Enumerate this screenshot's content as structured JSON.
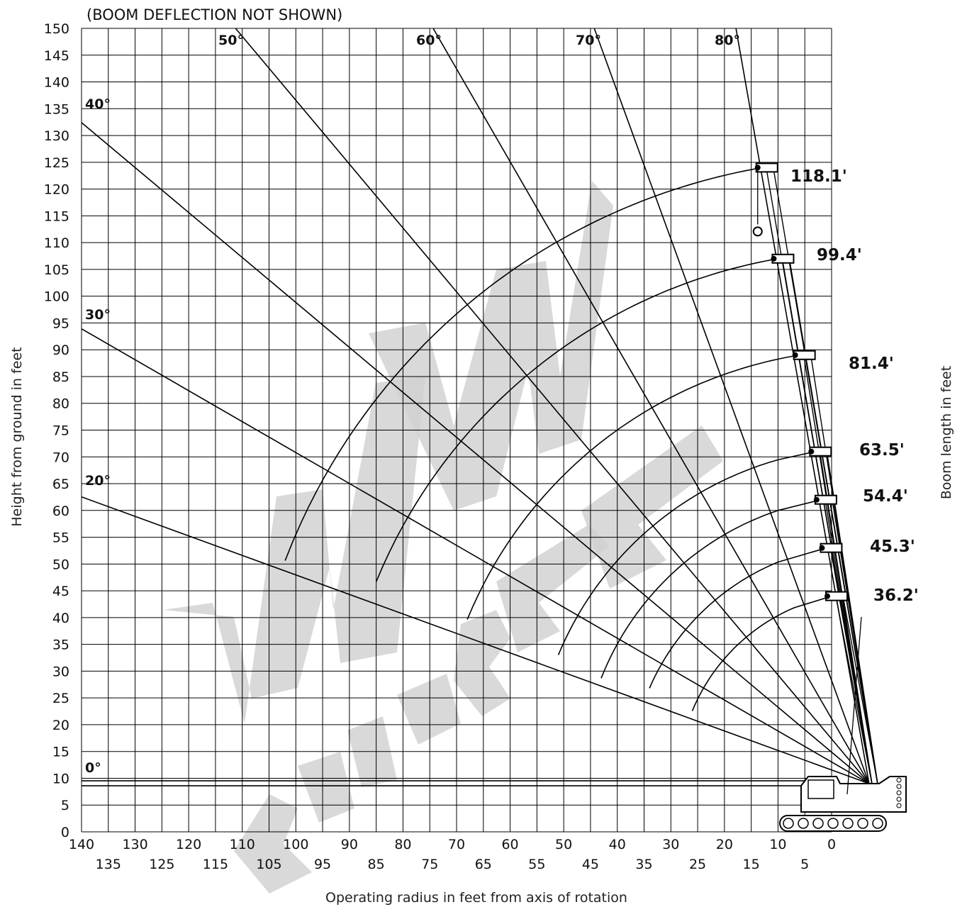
{
  "chart_data": {
    "type": "line",
    "title": "",
    "note": "(BOOM DEFLECTION NOT SHOWN)",
    "xlabel": "Operating radius in feet from axis of rotation",
    "ylabel": "Height from ground in feet",
    "y2label": "Boom length in feet",
    "xlim": [
      140,
      -5
    ],
    "ylim": [
      0,
      150
    ],
    "grid": true,
    "x_ticks_upper": [
      "140",
      "130",
      "120",
      "110",
      "100",
      "90",
      "80",
      "70",
      "60",
      "50",
      "40",
      "30",
      "20",
      "10",
      "0"
    ],
    "x_ticks_lower": [
      "135",
      "125",
      "115",
      "105",
      "95",
      "85",
      "75",
      "65",
      "55",
      "45",
      "35",
      "25",
      "15",
      "5"
    ],
    "y_ticks": [
      "0",
      "5",
      "10",
      "15",
      "20",
      "25",
      "30",
      "35",
      "40",
      "45",
      "50",
      "55",
      "60",
      "65",
      "70",
      "75",
      "80",
      "85",
      "90",
      "95",
      "100",
      "105",
      "110",
      "115",
      "120",
      "125",
      "130",
      "135",
      "140",
      "145",
      "150"
    ],
    "boom_pivot": {
      "x": -7,
      "y": 9
    },
    "angle_lines": [
      {
        "label": "0°",
        "angle": 0
      },
      {
        "label": "20°",
        "angle": 20
      },
      {
        "label": "30°",
        "angle": 30
      },
      {
        "label": "40°",
        "angle": 40
      },
      {
        "label": "50°",
        "angle": 50
      },
      {
        "label": "60°",
        "angle": 60
      },
      {
        "label": "70°",
        "angle": 70
      },
      {
        "label": "80°",
        "angle": 80
      }
    ],
    "boom_lengths": [
      {
        "label": "118.1'",
        "length": 118.1,
        "arc_from": 102,
        "arc_to": 15,
        "tip": {
          "x": 13,
          "y": 124
        }
      },
      {
        "label": "99.4'",
        "length": 99.4,
        "arc_from": 85,
        "arc_to": 11,
        "tip": {
          "x": 10,
          "y": 107
        }
      },
      {
        "label": "81.4'",
        "length": 81.4,
        "arc_from": 68,
        "arc_to": 7,
        "tip": {
          "x": 6,
          "y": 89
        }
      },
      {
        "label": "63.5'",
        "length": 63.5,
        "arc_from": 51,
        "arc_to": 10,
        "tip": {
          "x": 3,
          "y": 71
        }
      },
      {
        "label": "54.4'",
        "length": 54.4,
        "arc_from": 43,
        "arc_to": 10,
        "tip": {
          "x": 2,
          "y": 62
        }
      },
      {
        "label": "45.3'",
        "length": 45.3,
        "arc_from": 34,
        "arc_to": 10,
        "tip": {
          "x": 1,
          "y": 53
        }
      },
      {
        "label": "36.2'",
        "length": 36.2,
        "arc_from": 26,
        "arc_to": 7,
        "tip": {
          "x": 0,
          "y": 44
        }
      }
    ],
    "colors": {
      "ink": "#000000",
      "watermark": "#cfcfcf"
    }
  }
}
